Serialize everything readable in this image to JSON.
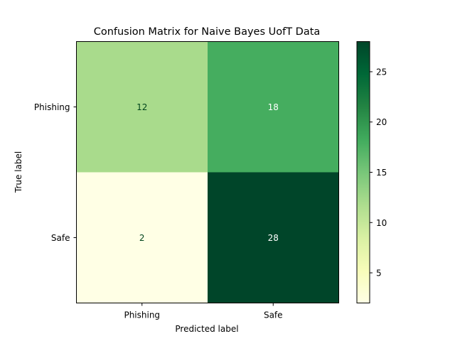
{
  "chart_data": {
    "type": "heatmap",
    "title": "Confusion Matrix for Naive Bayes UofT Data",
    "xlabel": "Predicted label",
    "ylabel": "True label",
    "x_categories": [
      "Phishing",
      "Safe"
    ],
    "y_categories": [
      "Phishing",
      "Safe"
    ],
    "values": [
      [
        12,
        18
      ],
      [
        2,
        28
      ]
    ],
    "value_labels": [
      [
        "12",
        "18"
      ],
      [
        "2",
        "28"
      ]
    ],
    "colormap": "YlGn",
    "color_range": [
      2,
      28
    ],
    "colorbar_ticks": [
      5,
      10,
      15,
      20,
      25
    ],
    "colorbar_tick_labels": [
      "5",
      "10",
      "15",
      "20",
      "25"
    ],
    "grid": false,
    "legend": "colorbar-right"
  },
  "colors": {
    "text_light": "#ffffff",
    "text_dark": "#00441b",
    "axis": "#000000"
  }
}
